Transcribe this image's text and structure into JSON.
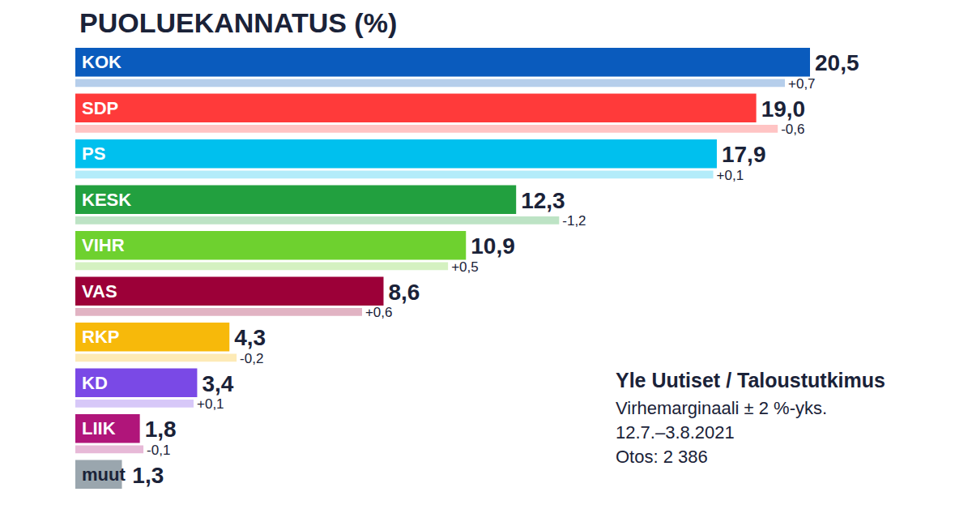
{
  "chart_data": {
    "type": "bar",
    "title": "PUOLUEKANNATUS (%)",
    "orientation": "horizontal",
    "categories": [
      "KOK",
      "SDP",
      "PS",
      "KESK",
      "VIHR",
      "VAS",
      "RKP",
      "KD",
      "LIIK",
      "muut"
    ],
    "values": [
      20.5,
      19.0,
      17.9,
      12.3,
      10.9,
      8.6,
      4.3,
      3.4,
      1.8,
      1.3
    ],
    "value_labels": [
      "20,5",
      "19,0",
      "17,9",
      "12,3",
      "10,9",
      "8,6",
      "4,3",
      "3,4",
      "1,8",
      "1,3"
    ],
    "colors": [
      "#0a5bbd",
      "#ff3a3a",
      "#00c0ee",
      "#22a03f",
      "#6ed12f",
      "#9c0038",
      "#f7b90a",
      "#7a49e6",
      "#b0157a",
      "#9aa6ae"
    ],
    "changes": [
      0.7,
      -0.6,
      0.1,
      -1.2,
      0.5,
      0.6,
      -0.2,
      0.1,
      -0.1,
      null
    ],
    "change_labels": [
      "+0,7",
      "-0,6",
      "+0,1",
      "-1,2",
      "+0,5",
      "+0,6",
      "-0,2",
      "+0,1",
      "-0,1",
      null
    ],
    "xlim": [
      0,
      20.5
    ],
    "tick_labels": false,
    "grid": false,
    "data_labels": true,
    "source": "Yle Uutiset / Taloustutkimus",
    "notes": [
      "Virhemarginaali ± 2 %-yks.",
      "12.7.–3.8.2021",
      "Otos: 2 386"
    ]
  }
}
